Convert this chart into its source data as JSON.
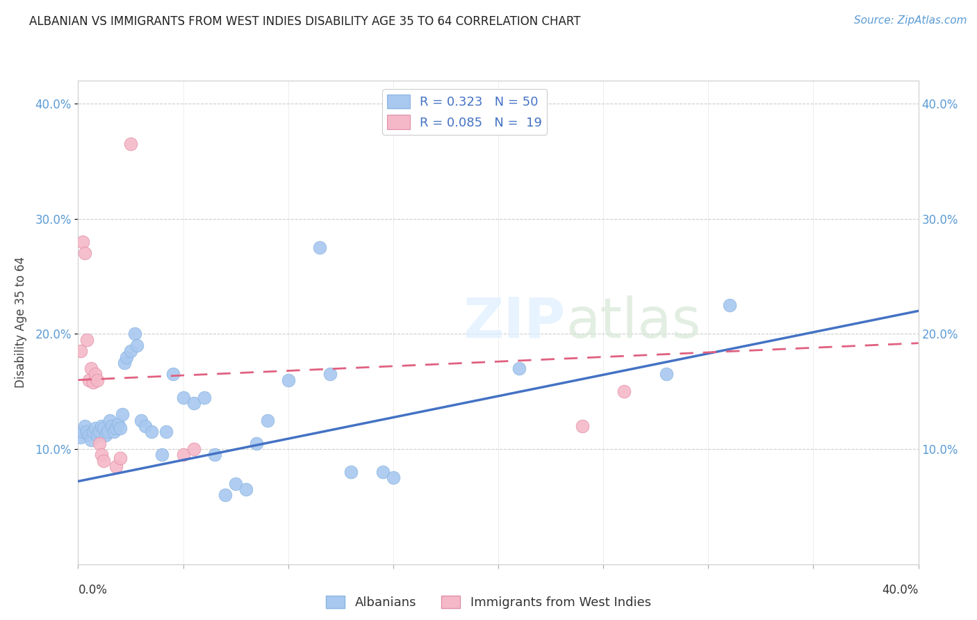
{
  "title": "ALBANIAN VS IMMIGRANTS FROM WEST INDIES DISABILITY AGE 35 TO 64 CORRELATION CHART",
  "source": "Source: ZipAtlas.com",
  "ylabel": "Disability Age 35 to 64",
  "watermark": "ZIPatlas",
  "legend_albanians": "Albanians",
  "legend_wi": "Immigrants from West Indies",
  "r_albanians": 0.323,
  "n_albanians": 50,
  "r_wi": 0.085,
  "n_wi": 19,
  "xlim": [
    0.0,
    0.4
  ],
  "ylim": [
    0.0,
    0.42
  ],
  "yticks": [
    0.1,
    0.2,
    0.3,
    0.4
  ],
  "ytick_labels": [
    "10.0%",
    "20.0%",
    "30.0%",
    "40.0%"
  ],
  "xticks": [
    0.0,
    0.05,
    0.1,
    0.15,
    0.2,
    0.25,
    0.3,
    0.35,
    0.4
  ],
  "blue_color": "#a8c8f0",
  "pink_color": "#f5b8c8",
  "blue_line_color": "#4472c4",
  "pink_line_color": "#e06080",
  "albanians_x": [
    0.001,
    0.002,
    0.003,
    0.004,
    0.005,
    0.006,
    0.007,
    0.008,
    0.009,
    0.01,
    0.011,
    0.012,
    0.013,
    0.014,
    0.015,
    0.016,
    0.017,
    0.018,
    0.019,
    0.02,
    0.021,
    0.022,
    0.023,
    0.025,
    0.027,
    0.028,
    0.03,
    0.032,
    0.035,
    0.04,
    0.042,
    0.045,
    0.05,
    0.055,
    0.06,
    0.065,
    0.07,
    0.075,
    0.08,
    0.085,
    0.09,
    0.1,
    0.115,
    0.12,
    0.13,
    0.145,
    0.15,
    0.21,
    0.28,
    0.31
  ],
  "albanians_y": [
    0.11,
    0.115,
    0.12,
    0.115,
    0.112,
    0.108,
    0.115,
    0.118,
    0.112,
    0.115,
    0.12,
    0.118,
    0.112,
    0.115,
    0.125,
    0.12,
    0.115,
    0.118,
    0.122,
    0.118,
    0.13,
    0.175,
    0.18,
    0.185,
    0.2,
    0.19,
    0.125,
    0.12,
    0.115,
    0.095,
    0.115,
    0.165,
    0.145,
    0.14,
    0.145,
    0.095,
    0.06,
    0.07,
    0.065,
    0.105,
    0.125,
    0.16,
    0.275,
    0.165,
    0.08,
    0.08,
    0.075,
    0.17,
    0.165,
    0.225
  ],
  "wi_x": [
    0.001,
    0.002,
    0.003,
    0.004,
    0.005,
    0.006,
    0.007,
    0.008,
    0.009,
    0.01,
    0.011,
    0.012,
    0.018,
    0.02,
    0.025,
    0.05,
    0.055,
    0.24,
    0.26
  ],
  "wi_y": [
    0.185,
    0.28,
    0.27,
    0.195,
    0.16,
    0.17,
    0.158,
    0.165,
    0.16,
    0.105,
    0.095,
    0.09,
    0.085,
    0.092,
    0.365,
    0.095,
    0.1,
    0.12,
    0.15
  ],
  "blue_line_x": [
    0.0,
    0.4
  ],
  "blue_line_y_start": 0.072,
  "blue_line_y_end": 0.22,
  "pink_line_x": [
    0.0,
    0.4
  ],
  "pink_line_y_start": 0.16,
  "pink_line_y_end": 0.192
}
